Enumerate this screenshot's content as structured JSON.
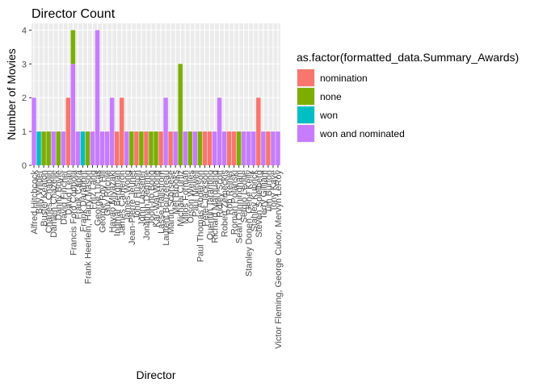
{
  "chart_data": {
    "type": "bar",
    "stacked": true,
    "title": "Director Count",
    "xlabel": "Director",
    "ylabel": "Number of Movies",
    "ylim": [
      0,
      4.2
    ],
    "yticks": [
      0,
      1,
      2,
      3,
      4
    ],
    "grid": true,
    "legend_position": "right",
    "legend_title": "as.factor(formatted_data.Summary_Awards)",
    "series": [
      {
        "name": "nomination",
        "color": "#F8766D"
      },
      {
        "name": "none",
        "color": "#7CAE00"
      },
      {
        "name": "won",
        "color": "#00BFC4"
      },
      {
        "name": "won and nominated",
        "color": "#C77CFF"
      }
    ],
    "bars": [
      {
        "director": "Alfred Hitchcock",
        "segments": [
          [
            "won and nominated",
            2
          ]
        ]
      },
      {
        "director": "Billy Wilder",
        "segments": [
          [
            "won",
            1
          ]
        ]
      },
      {
        "director": "Buster Keaton",
        "segments": [
          [
            "none",
            1
          ]
        ]
      },
      {
        "director": "Charles Chaplin",
        "segments": [
          [
            "none",
            1
          ]
        ]
      },
      {
        "director": "Damien Chazelle",
        "segments": [
          [
            "won and nominated",
            1
          ]
        ]
      },
      {
        "director": "Danny Boyle",
        "segments": [
          [
            "none",
            1
          ]
        ]
      },
      {
        "director": "David Fincher",
        "segments": [
          [
            "won and nominated",
            1
          ]
        ]
      },
      {
        "director": "David Lean",
        "segments": [
          [
            "nomination",
            2
          ]
        ]
      },
      {
        "director": "Francis Ford Coppola",
        "segments": [
          [
            "won and nominated",
            3
          ],
          [
            "none",
            1
          ]
        ]
      },
      {
        "director": "Frank Capra",
        "segments": [
          [
            "won and nominated",
            1
          ]
        ]
      },
      {
        "director": "Frank Darabont",
        "segments": [
          [
            "won",
            1
          ]
        ]
      },
      {
        "director": "Frank Heerlein, Harry Mason",
        "segments": [
          [
            "none",
            1
          ]
        ]
      },
      {
        "director": "Fritz Lang",
        "segments": [
          [
            "won and nominated",
            1
          ]
        ]
      },
      {
        "director": "George Lucas",
        "segments": [
          [
            "won and nominated",
            4
          ]
        ]
      },
      {
        "director": "George Roy Hill",
        "segments": [
          [
            "won and nominated",
            1
          ]
        ]
      },
      {
        "director": "Guy Ritchie",
        "segments": [
          [
            "won and nominated",
            1
          ]
        ]
      },
      {
        "director": "Hayao Miyazaki",
        "segments": [
          [
            "won and nominated",
            2
          ]
        ]
      },
      {
        "director": "Ingmar Bergman",
        "segments": [
          [
            "nomination",
            1
          ]
        ]
      },
      {
        "director": "James Cameron",
        "segments": [
          [
            "nomination",
            2
          ]
        ]
      },
      {
        "director": "James Wong",
        "segments": [
          [
            "won and nominated",
            1
          ]
        ]
      },
      {
        "director": "Jean-Pierre Jeunet",
        "segments": [
          [
            "none",
            1
          ]
        ]
      },
      {
        "director": "John Huston",
        "segments": [
          [
            "nomination",
            1
          ]
        ]
      },
      {
        "director": "John Lasseter",
        "segments": [
          [
            "none",
            1
          ]
        ]
      },
      {
        "director": "Jonathan Demme",
        "segments": [
          [
            "nomination",
            1
          ]
        ]
      },
      {
        "director": "Joon-ho Bong",
        "segments": [
          [
            "none",
            1
          ]
        ]
      },
      {
        "director": "Kar-Wai Wong",
        "segments": [
          [
            "none",
            1
          ]
        ]
      },
      {
        "director": "Lasse Hallstrom",
        "segments": [
          [
            "nomination",
            1
          ]
        ]
      },
      {
        "director": "Laurent Bouzereau",
        "segments": [
          [
            "won and nominated",
            2
          ]
        ]
      },
      {
        "director": "Martin Scorsese",
        "segments": [
          [
            "nomination",
            1
          ]
        ]
      },
      {
        "director": "Mel Brooks",
        "segments": [
          [
            "won and nominated",
            1
          ]
        ]
      },
      {
        "director": "Michael Curtiz",
        "segments": [
          [
            "none",
            3
          ]
        ]
      },
      {
        "director": "Milos Forman",
        "segments": [
          [
            "won and nominated",
            1
          ]
        ]
      },
      {
        "director": "Orson Welles",
        "segments": [
          [
            "none",
            1
          ]
        ]
      },
      {
        "director": "Paul Newell",
        "segments": [
          [
            "won and nominated",
            1
          ]
        ]
      },
      {
        "director": "Paul Thomas Anderson",
        "segments": [
          [
            "none",
            1
          ]
        ]
      },
      {
        "director": "Peter Jackson",
        "segments": [
          [
            "nomination",
            1
          ]
        ]
      },
      {
        "director": "Quentin Tarantino",
        "segments": [
          [
            "nomination",
            1
          ]
        ]
      },
      {
        "director": "Richard Marquand",
        "segments": [
          [
            "won and nominated",
            1
          ]
        ]
      },
      {
        "director": "Ridley Scott",
        "segments": [
          [
            "won and nominated",
            2
          ]
        ]
      },
      {
        "director": "Robert Zemeckis",
        "segments": [
          [
            "won and nominated",
            1
          ]
        ]
      },
      {
        "director": "Rob Reiner",
        "segments": [
          [
            "nomination",
            1
          ]
        ]
      },
      {
        "director": "Roman Polanski",
        "segments": [
          [
            "nomination",
            1
          ]
        ]
      },
      {
        "director": "Sean Cunningham",
        "segments": [
          [
            "none",
            1
          ]
        ]
      },
      {
        "director": "Sergio Leone",
        "segments": [
          [
            "won and nominated",
            1
          ]
        ]
      },
      {
        "director": "Stanley Donen, Gene Kelly",
        "segments": [
          [
            "won and nominated",
            1
          ]
        ]
      },
      {
        "director": "Stanley Kubrick",
        "segments": [
          [
            "won and nominated",
            1
          ]
        ]
      },
      {
        "director": "Steven Spielberg",
        "segments": [
          [
            "nomination",
            2
          ]
        ]
      },
      {
        "director": "Terry Gilliam",
        "segments": [
          [
            "won and nominated",
            1
          ]
        ]
      },
      {
        "director": "Tim Burton",
        "segments": [
          [
            "nomination",
            1
          ]
        ]
      },
      {
        "director": "Tony Kaye",
        "segments": [
          [
            "won and nominated",
            1
          ]
        ]
      },
      {
        "director": "Victor Fleming, George Cukor, Mervyn LeRoy",
        "segments": [
          [
            "won and nominated",
            1
          ]
        ]
      }
    ]
  }
}
